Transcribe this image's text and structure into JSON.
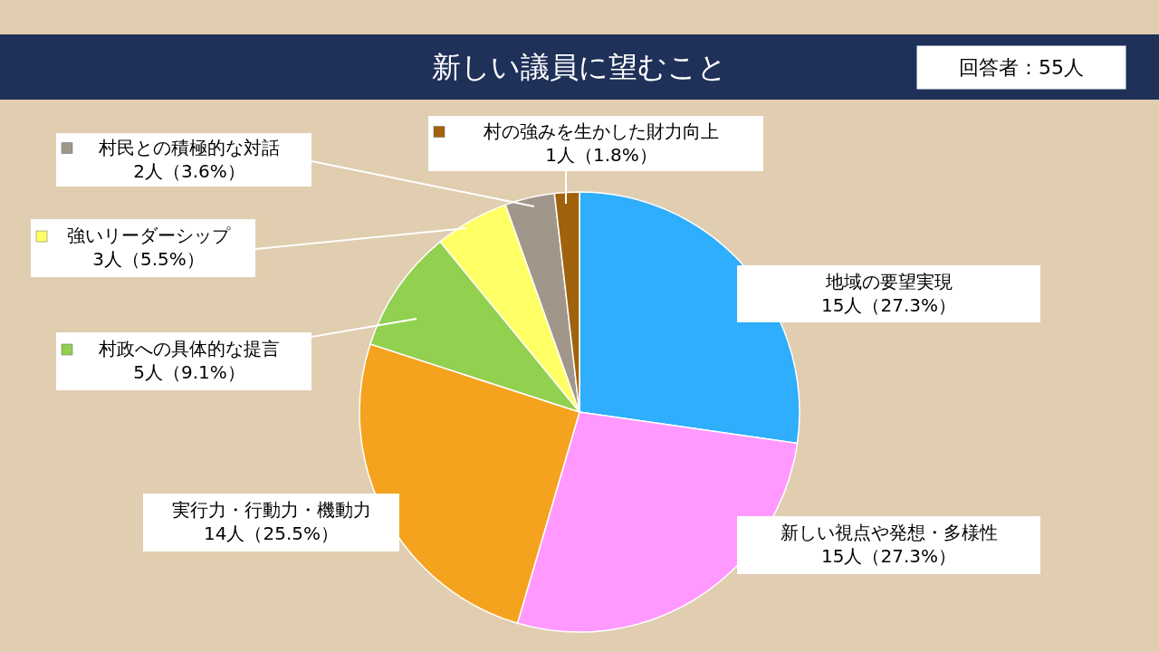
{
  "chart_data": {
    "type": "pie",
    "title": "新しい議員に望むこと",
    "categories": [
      "地域の要望実現",
      "新しい視点や発想・多様性",
      "実行力・行動力・機動力",
      "村政への具体的な提言",
      "強いリーダーシップ",
      "村民との積極的な対話",
      "村の強みを生かした財力向上"
    ],
    "values": [
      15,
      15,
      14,
      5,
      3,
      2,
      1
    ],
    "value_labels": [
      "15人（27.3%）",
      "15人（27.3%）",
      "14人（25.5%）",
      "5人（9.1%）",
      "3人（5.5%）",
      "2人（3.6%）",
      "1人（1.8%）"
    ],
    "colors": [
      "#2eaefc",
      "#ff99ff",
      "#f5a21e",
      "#92d050",
      "#ffff66",
      "#a0968a",
      "#a0620c"
    ],
    "annotations": [
      "回答者：55人"
    ],
    "legend": "left"
  }
}
